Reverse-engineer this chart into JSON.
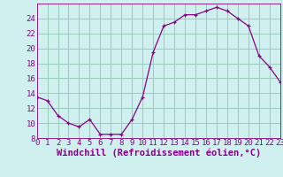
{
  "x": [
    0,
    1,
    2,
    3,
    4,
    5,
    6,
    7,
    8,
    9,
    10,
    11,
    12,
    13,
    14,
    15,
    16,
    17,
    18,
    19,
    20,
    21,
    22,
    23
  ],
  "y": [
    13.5,
    13.0,
    11.0,
    10.0,
    9.5,
    10.5,
    8.5,
    8.5,
    8.5,
    10.5,
    13.5,
    19.5,
    23.0,
    23.5,
    24.5,
    24.5,
    25.0,
    25.5,
    25.0,
    24.0,
    23.0,
    19.0,
    17.5,
    15.5
  ],
  "line_color": "#880088",
  "marker": "+",
  "marker_color": "#880088",
  "bg_color": "#cff0ee",
  "grid_color": "#99ccbb",
  "xlabel": "Windchill (Refroidissement éolien,°C)",
  "xlabel_color": "#880088",
  "tick_color": "#880088",
  "ylim": [
    8,
    26
  ],
  "xlim": [
    0,
    23
  ],
  "yticks": [
    8,
    10,
    12,
    14,
    16,
    18,
    20,
    22,
    24
  ],
  "xticks": [
    0,
    1,
    2,
    3,
    4,
    5,
    6,
    7,
    8,
    9,
    10,
    11,
    12,
    13,
    14,
    15,
    16,
    17,
    18,
    19,
    20,
    21,
    22,
    23
  ],
  "font_size": 6.5,
  "xlabel_font_size": 7.5
}
